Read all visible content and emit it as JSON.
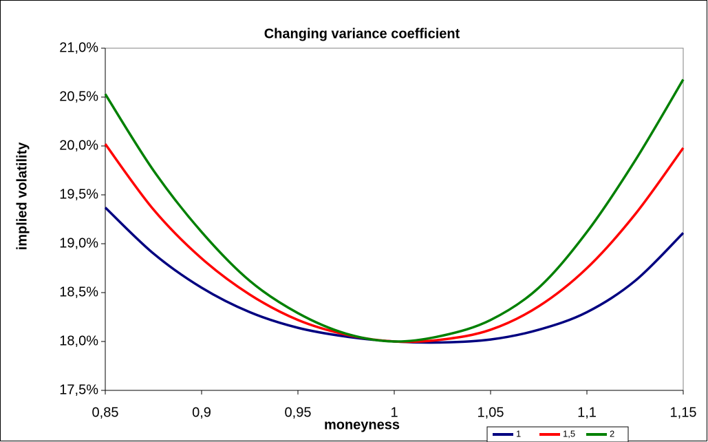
{
  "chart_data": {
    "type": "line",
    "title": "Changing variance coefficient",
    "x_label": "moneyness",
    "y_label": "implied volatility",
    "x": [
      0.85,
      0.875,
      0.9,
      0.925,
      0.95,
      0.975,
      1.0,
      1.025,
      1.05,
      1.075,
      1.1,
      1.125,
      1.15
    ],
    "series": [
      {
        "name": "1",
        "color": "#000080",
        "values": [
          19.37,
          18.9,
          18.55,
          18.3,
          18.14,
          18.05,
          18.0,
          17.99,
          18.02,
          18.12,
          18.3,
          18.62,
          19.11
        ]
      },
      {
        "name": "1,5",
        "color": "#ff0000",
        "values": [
          20.02,
          19.35,
          18.85,
          18.48,
          18.22,
          18.07,
          18.0,
          18.02,
          18.12,
          18.36,
          18.75,
          19.3,
          19.98
        ]
      },
      {
        "name": "2",
        "color": "#008000",
        "values": [
          20.53,
          19.75,
          19.12,
          18.62,
          18.29,
          18.08,
          18.0,
          18.06,
          18.22,
          18.55,
          19.12,
          19.85,
          20.68
        ]
      }
    ],
    "xlim": [
      0.85,
      1.15
    ],
    "xticks": [
      {
        "value": 0.85,
        "label": "0,85"
      },
      {
        "value": 0.9,
        "label": "0,9"
      },
      {
        "value": 0.95,
        "label": "0,95"
      },
      1,
      {
        "value": 1.05,
        "label": "1,05"
      },
      {
        "value": 1.1,
        "label": "1,1"
      },
      {
        "value": 1.15,
        "label": "1,15"
      }
    ],
    "ylim": [
      17.5,
      21.0
    ],
    "yticks": [
      {
        "value": 17.5,
        "label": "17,5%"
      },
      {
        "value": 18.0,
        "label": "18,0%"
      },
      {
        "value": 18.5,
        "label": "18,5%"
      },
      {
        "value": 19.0,
        "label": "19,0%"
      },
      {
        "value": 19.5,
        "label": "19,5%"
      },
      {
        "value": 20.0,
        "label": "20,0%"
      },
      {
        "value": 20.5,
        "label": "20,5%"
      },
      {
        "value": 21.0,
        "label": "21,0%"
      }
    ],
    "grid": false,
    "legend": "bottom-right"
  }
}
